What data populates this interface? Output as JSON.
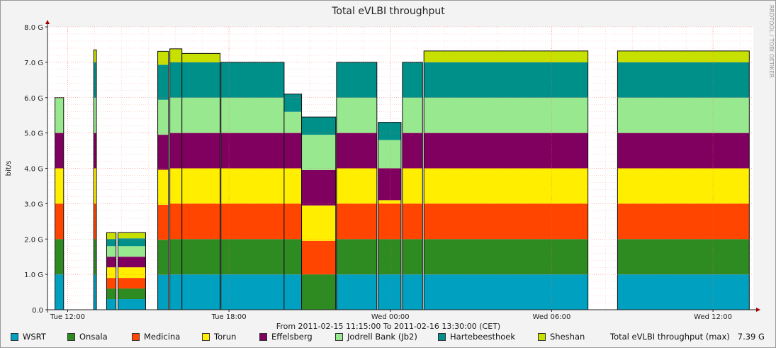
{
  "chart_data": {
    "type": "area",
    "title": "Total eVLBI throughput",
    "ylabel": "bit/s",
    "watermark": "RRDTOOL / TOBI OETIKER",
    "footer": "From 2011-02-15 11:15:00 To 2011-02-16 13:30:00 (CET)",
    "ylim": [
      0,
      8
    ],
    "yticks": [
      {
        "v": 0,
        "label": "0.0"
      },
      {
        "v": 1,
        "label": "1.0 G"
      },
      {
        "v": 2,
        "label": "2.0 G"
      },
      {
        "v": 3,
        "label": "3.0 G"
      },
      {
        "v": 4,
        "label": "4.0 G"
      },
      {
        "v": 5,
        "label": "5.0 G"
      },
      {
        "v": 6,
        "label": "6.0 G"
      },
      {
        "v": 7,
        "label": "7.0 G"
      },
      {
        "v": 8,
        "label": "8.0 G"
      }
    ],
    "x_unit": "hours since 2011-02-15 11:15 CET",
    "xlim": [
      0,
      26.25
    ],
    "xticks": [
      {
        "h": 0.75,
        "label": "Tue 12:00"
      },
      {
        "h": 6.75,
        "label": "Tue 18:00"
      },
      {
        "h": 12.75,
        "label": "Wed 00:00"
      },
      {
        "h": 18.75,
        "label": "Wed 06:00"
      },
      {
        "h": 24.75,
        "label": "Wed 12:00"
      }
    ],
    "grid": true,
    "stacked": true,
    "series": [
      {
        "name": "WSRT",
        "color": "#00a0c0"
      },
      {
        "name": "Onsala",
        "color": "#2e8b22"
      },
      {
        "name": "Medicina",
        "color": "#ff4500"
      },
      {
        "name": "Torun",
        "color": "#ffee00"
      },
      {
        "name": "Effelsberg",
        "color": "#800060"
      },
      {
        "name": "Jodrell Bank (Jb2)",
        "color": "#98e890"
      },
      {
        "name": "Hartebeesthoek",
        "color": "#00908a"
      },
      {
        "name": "Sheshan",
        "color": "#c8e000"
      }
    ],
    "x": [
      0.0,
      0.25,
      0.31,
      0.6,
      0.62,
      1.7,
      1.72,
      1.82,
      1.84,
      2.2,
      2.25,
      2.5,
      2.55,
      2.8,
      3.7,
      3.72,
      4.1,
      4.12,
      4.55,
      4.6,
      4.95,
      5.0,
      6.42,
      6.45,
      7.8,
      7.82,
      8.3,
      8.32,
      8.8,
      9.4,
      9.45,
      10.7,
      10.75,
      12.25,
      12.3,
      13.15,
      13.2,
      13.95,
      14.0,
      18.6,
      18.62,
      18.65,
      18.67,
      18.7,
      18.72,
      18.75,
      18.77,
      18.8,
      18.82,
      18.85,
      18.87,
      18.9,
      18.92,
      18.95,
      18.97,
      19.0,
      19.02,
      19.05,
      19.07,
      19.1,
      19.12,
      19.15,
      19.17,
      19.2,
      19.22,
      19.25,
      19.27,
      19.3,
      19.32,
      19.35,
      19.37,
      19.4,
      19.42,
      19.45,
      19.47,
      19.5,
      19.52,
      19.55,
      19.57,
      19.6,
      19.62,
      19.65,
      19.67,
      19.7,
      19.72,
      19.75,
      19.77,
      19.8,
      19.82,
      19.85,
      19.87,
      19.9,
      19.92,
      19.95,
      19.97,
      20.0,
      20.02,
      20.05,
      20.07,
      20.1,
      20.12,
      20.15,
      20.17,
      20.2,
      20.22,
      20.25,
      20.27,
      20.3,
      20.32,
      20.35,
      20.37,
      20.4,
      20.42,
      20.45,
      20.47,
      20.5,
      20.52,
      20.55,
      20.57,
      20.6,
      20.62,
      20.65,
      20.67,
      20.7,
      20.72,
      20.75,
      20.77,
      20.8,
      20.82,
      20.85,
      20.87,
      20.9,
      20.92,
      20.95,
      20.97,
      21.0,
      21.02,
      21.05,
      21.07,
      21.1,
      21.12,
      21.15,
      21.17,
      21.2,
      21.22,
      21.25,
      21.27,
      21.3,
      21.32,
      21.35,
      21.37,
      21.4,
      21.42,
      21.45,
      21.47,
      21.5,
      21.52,
      21.55,
      21.57,
      21.6,
      21.62,
      21.65,
      21.67,
      21.7,
      21.72,
      21.75,
      21.77,
      21.8,
      21.82,
      21.85,
      21.87,
      21.9,
      21.92,
      21.95,
      21.97,
      22.0,
      22.02,
      22.05,
      22.07,
      22.1,
      22.12,
      22.15,
      22.17,
      22.2,
      22.22,
      22.25,
      22.27,
      22.3,
      22.32,
      22.35,
      22.37,
      22.4,
      22.42,
      22.45,
      22.47,
      22.5,
      22.52,
      22.55,
      22.57,
      22.6,
      22.62,
      22.65,
      22.67,
      22.7,
      22.72,
      22.75,
      22.77,
      22.8,
      22.82,
      22.85,
      22.87,
      22.9,
      22.92,
      22.95,
      22.97,
      23.0,
      23.02,
      23.05,
      23.07,
      23.1,
      23.12,
      23.15,
      23.17,
      23.2,
      23.22,
      23.25,
      23.27,
      23.3,
      23.32,
      23.35,
      23.37,
      23.4,
      23.42,
      23.45,
      23.47,
      23.5,
      23.52,
      23.55,
      23.57,
      23.6,
      23.62,
      23.65,
      23.67,
      23.7,
      23.72,
      23.75,
      23.77,
      23.8,
      23.82,
      23.85,
      23.87,
      23.9,
      23.92,
      23.95,
      23.97,
      24.0,
      24.02,
      24.05,
      24.07,
      24.1,
      24.12,
      24.15,
      24.17,
      24.2,
      24.22,
      24.25,
      24.27,
      24.3,
      24.32,
      24.35,
      24.37,
      24.4,
      24.42,
      24.45,
      24.47,
      24.5,
      24.52,
      24.55,
      24.57,
      24.6,
      24.62,
      24.65,
      24.67,
      24.7,
      24.72,
      24.75,
      24.77,
      24.8,
      24.82,
      24.85,
      24.87,
      24.9,
      24.92,
      24.95,
      24.97,
      25.0,
      25.02,
      25.05,
      25.07,
      25.1,
      25.12,
      25.15,
      25.17,
      25.2,
      25.22,
      25.25,
      25.27,
      25.3,
      25.32,
      25.35,
      25.37,
      25.4,
      25.42,
      25.45,
      25.47,
      25.5,
      25.52,
      25.55,
      25.57,
      25.6,
      25.62,
      25.65,
      25.67,
      25.7,
      25.72,
      25.75,
      25.77,
      25.8,
      25.82,
      25.85,
      25.87,
      25.9,
      25.92,
      25.95,
      25.97,
      26.0,
      26.02,
      26.05,
      26.07,
      26.1,
      26.12,
      26.15,
      26.17,
      26.2,
      26.25
    ],
    "segments": [
      {
        "from": 0.28,
        "to": 0.6,
        "values": [
          1.0,
          1.0,
          1.0,
          1.0,
          1.0,
          1.0,
          0,
          0
        ]
      },
      {
        "from": 1.72,
        "to": 1.82,
        "values": [
          1.0,
          1.0,
          1.0,
          1.0,
          1.0,
          1.0,
          1.0,
          0.35
        ]
      },
      {
        "from": 2.2,
        "to": 2.55,
        "values": [
          0.3,
          0.3,
          0.3,
          0.3,
          0.3,
          0.3,
          0.2,
          0.18
        ]
      },
      {
        "from": 2.62,
        "to": 3.65,
        "values": [
          0.3,
          0.3,
          0.3,
          0.3,
          0.3,
          0.3,
          0.22,
          0.16
        ]
      },
      {
        "from": 4.1,
        "to": 4.5,
        "values": [
          0.99,
          0.99,
          0.99,
          0.99,
          0.99,
          0.99,
          0.99,
          0.38
        ]
      },
      {
        "from": 4.55,
        "to": 5.0,
        "values": [
          1.0,
          1.0,
          1.0,
          1.0,
          1.0,
          1.0,
          1.0,
          0.38
        ]
      },
      {
        "from": 5.0,
        "to": 6.42,
        "values": [
          1.0,
          1.0,
          1.0,
          1.0,
          1.0,
          1.0,
          1.0,
          0.25
        ]
      },
      {
        "from": 6.45,
        "to": 8.8,
        "values": [
          1.0,
          1.0,
          1.0,
          1.0,
          1.0,
          1.0,
          1.0,
          0
        ]
      },
      {
        "from": 8.8,
        "to": 9.45,
        "values": [
          1.0,
          1.0,
          1.0,
          1.0,
          1.0,
          0.6,
          0.5,
          0
        ]
      },
      {
        "from": 9.45,
        "to": 10.72,
        "values": [
          0,
          1.0,
          0.95,
          1.0,
          1.0,
          1.0,
          0.5,
          0
        ]
      },
      {
        "from": 10.75,
        "to": 12.25,
        "values": [
          1.0,
          1.0,
          1.0,
          1.0,
          1.0,
          1.0,
          1.0,
          0
        ]
      },
      {
        "from": 12.3,
        "to": 13.15,
        "values": [
          1.0,
          1.0,
          1.0,
          0.1,
          0.9,
          0.8,
          0.5,
          0
        ]
      },
      {
        "from": 13.2,
        "to": 13.95,
        "values": [
          1.0,
          1.0,
          1.0,
          1.0,
          1.0,
          1.0,
          1.0,
          0
        ]
      },
      {
        "from": 14.0,
        "to": 20.1,
        "values": [
          1.0,
          1.0,
          1.0,
          1.0,
          1.0,
          1.0,
          1.0,
          0.32
        ]
      },
      {
        "from": 21.2,
        "to": 26.1,
        "values": [
          1.0,
          1.0,
          1.0,
          1.0,
          1.0,
          1.0,
          1.0,
          0.32
        ]
      }
    ]
  },
  "legend_items": [
    {
      "label": "WSRT",
      "color": "#00a0c0"
    },
    {
      "label": "Onsala",
      "color": "#2e8b22"
    },
    {
      "label": "Medicina",
      "color": "#ff4500"
    },
    {
      "label": "Torun",
      "color": "#ffee00"
    },
    {
      "label": "Effelsberg",
      "color": "#800060"
    },
    {
      "label": "Jodrell Bank (Jb2)",
      "color": "#98e890"
    },
    {
      "label": "Hartebeesthoek",
      "color": "#00908a"
    },
    {
      "label": "Sheshan",
      "color": "#c8e000"
    }
  ],
  "total_label": "Total eVLBI throughput (max)",
  "total_value": "7.39 G"
}
